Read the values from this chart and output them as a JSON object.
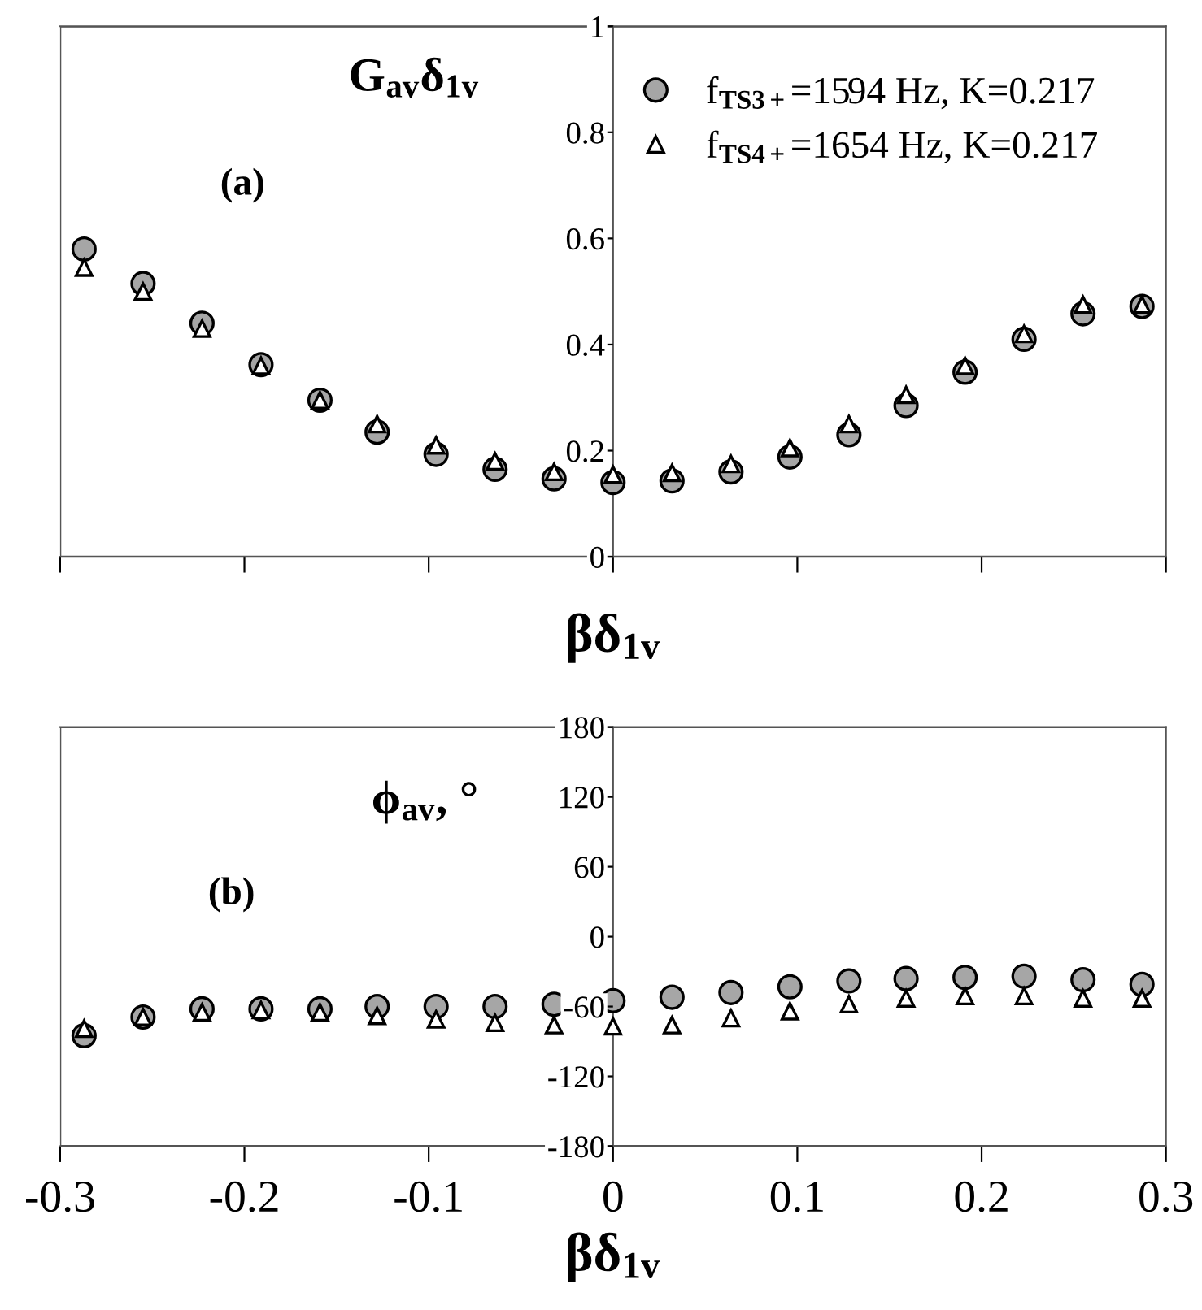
{
  "chart_data": [
    {
      "type": "scatter",
      "ylabel": "G$_{av}$δ$_{1v}$",
      "xlabel": "βδ$_{1v}$",
      "annotations": [
        "(a)"
      ],
      "x": [
        -0.287,
        -0.255,
        -0.223,
        -0.191,
        -0.159,
        -0.128,
        -0.096,
        -0.064,
        -0.032,
        0,
        0.032,
        0.064,
        0.096,
        0.128,
        0.159,
        0.191,
        0.223,
        0.255,
        0.287
      ],
      "series": [
        {
          "name": "f$_{TS3+}$=1594 Hz, K=0.217",
          "color": "#a6a6a6",
          "marker": "circle",
          "values": [
            0.58,
            0.515,
            0.44,
            0.362,
            0.295,
            0.235,
            0.193,
            0.165,
            0.147,
            0.14,
            0.143,
            0.16,
            0.188,
            0.23,
            0.285,
            0.348,
            0.41,
            0.458,
            0.472
          ]
        },
        {
          "name": "f$_{TS4+}$=1654 Hz, K=0.217",
          "color": "#ffffff",
          "marker": "triangle",
          "values": [
            0.545,
            0.5,
            0.43,
            0.36,
            0.295,
            0.25,
            0.21,
            0.18,
            0.16,
            0.155,
            0.158,
            0.175,
            0.205,
            0.25,
            0.305,
            0.36,
            0.42,
            0.475,
            0.475
          ]
        }
      ],
      "xlim": [
        -0.3,
        0.3
      ],
      "xticks": [
        -0.3,
        -0.2,
        -0.1,
        0,
        0.1,
        0.2,
        0.3
      ],
      "ylim": [
        0,
        1
      ],
      "yticks": [
        0,
        0.2,
        0.4,
        0.6,
        0.8,
        1
      ],
      "tick_labels": "y",
      "legend": "top right",
      "grid": false
    },
    {
      "type": "scatter",
      "ylabel": "ϕ$_{av}$, °",
      "xlabel": "βδ$_{1v}$",
      "annotations": [
        "(b)"
      ],
      "x": [
        -0.287,
        -0.255,
        -0.223,
        -0.191,
        -0.159,
        -0.128,
        -0.096,
        -0.064,
        -0.032,
        0,
        0.032,
        0.064,
        0.096,
        0.128,
        0.159,
        0.191,
        0.223,
        0.255,
        0.287
      ],
      "series": [
        {
          "color": "#a6a6a6",
          "marker": "circle",
          "values": [
            -85,
            -69,
            -62,
            -62,
            -62,
            -60,
            -60,
            -60,
            -58,
            -55,
            -52,
            -48,
            -43,
            -38,
            -36,
            -35,
            -34,
            -37,
            -41
          ]
        },
        {
          "color": "#ffffff",
          "marker": "triangle",
          "values": [
            -79,
            -69,
            -65,
            -63,
            -65,
            -68,
            -71,
            -74,
            -76,
            -77,
            -76,
            -70,
            -64,
            -58,
            -53,
            -51,
            -51,
            -53,
            -53
          ]
        }
      ],
      "xlim": [
        -0.3,
        0.3
      ],
      "xticks": [
        -0.3,
        -0.2,
        -0.1,
        0,
        0.1,
        0.2,
        0.3
      ],
      "ylim": [
        -180,
        180
      ],
      "yticks": [
        -180,
        -120,
        -60,
        0,
        60,
        120,
        180
      ],
      "grid": false
    }
  ]
}
